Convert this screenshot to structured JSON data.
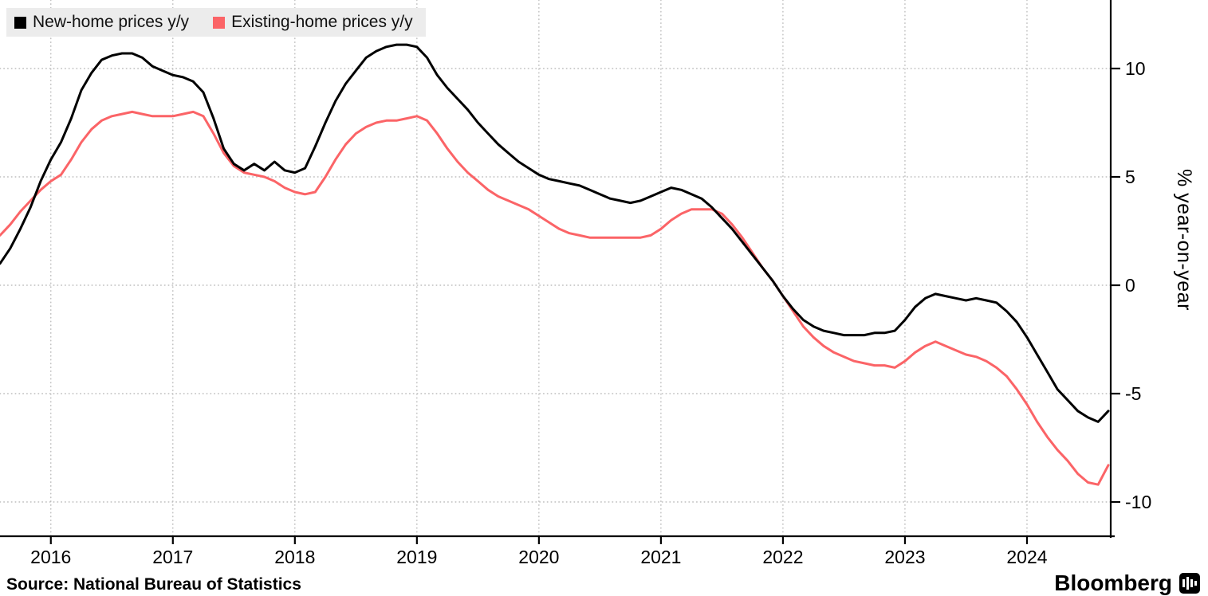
{
  "y_axis": {
    "title": "% year-on-year"
  },
  "footer": {
    "source": "Source: National Bureau of Statistics",
    "brand": "Bloomberg"
  },
  "chart_data": {
    "type": "line",
    "title": "",
    "ylabel": "% year-on-year",
    "xlabel": "",
    "grid": "dotted",
    "legend_position": "top-left",
    "axis_side": "right",
    "ylim": [
      -11.6,
      13.2
    ],
    "y_ticks": [
      10,
      5,
      0,
      -5,
      -10
    ],
    "x_tick_labels": [
      "2016",
      "2017",
      "2018",
      "2019",
      "2020",
      "2021",
      "2022",
      "2023",
      "2024"
    ],
    "x": [
      "2015-08",
      "2015-09",
      "2015-10",
      "2015-11",
      "2015-12",
      "2016-01",
      "2016-02",
      "2016-03",
      "2016-04",
      "2016-05",
      "2016-06",
      "2016-07",
      "2016-08",
      "2016-09",
      "2016-10",
      "2016-11",
      "2016-12",
      "2017-01",
      "2017-02",
      "2017-03",
      "2017-04",
      "2017-05",
      "2017-06",
      "2017-07",
      "2017-08",
      "2017-09",
      "2017-10",
      "2017-11",
      "2017-12",
      "2018-01",
      "2018-02",
      "2018-03",
      "2018-04",
      "2018-05",
      "2018-06",
      "2018-07",
      "2018-08",
      "2018-09",
      "2018-10",
      "2018-11",
      "2018-12",
      "2019-01",
      "2019-02",
      "2019-03",
      "2019-04",
      "2019-05",
      "2019-06",
      "2019-07",
      "2019-08",
      "2019-09",
      "2019-10",
      "2019-11",
      "2019-12",
      "2020-01",
      "2020-02",
      "2020-03",
      "2020-04",
      "2020-05",
      "2020-06",
      "2020-07",
      "2020-08",
      "2020-09",
      "2020-10",
      "2020-11",
      "2020-12",
      "2021-01",
      "2021-02",
      "2021-03",
      "2021-04",
      "2021-05",
      "2021-06",
      "2021-07",
      "2021-08",
      "2021-09",
      "2021-10",
      "2021-11",
      "2021-12",
      "2022-01",
      "2022-02",
      "2022-03",
      "2022-04",
      "2022-05",
      "2022-06",
      "2022-07",
      "2022-08",
      "2022-09",
      "2022-10",
      "2022-11",
      "2022-12",
      "2023-01",
      "2023-02",
      "2023-03",
      "2023-04",
      "2023-05",
      "2023-06",
      "2023-07",
      "2023-08",
      "2023-09",
      "2023-10",
      "2023-11",
      "2023-12",
      "2024-01",
      "2024-02",
      "2024-03",
      "2024-04",
      "2024-05",
      "2024-06",
      "2024-07",
      "2024-08",
      "2024-09"
    ],
    "series": [
      {
        "name": "New-home prices y/y",
        "color": "#000000",
        "values": [
          1.0,
          1.7,
          2.6,
          3.6,
          4.8,
          5.8,
          6.6,
          7.7,
          9.0,
          9.8,
          10.4,
          10.6,
          10.7,
          10.7,
          10.5,
          10.1,
          9.9,
          9.7,
          9.6,
          9.4,
          8.9,
          7.7,
          6.3,
          5.6,
          5.3,
          5.6,
          5.3,
          5.7,
          5.3,
          5.2,
          5.4,
          6.4,
          7.5,
          8.5,
          9.3,
          9.9,
          10.5,
          10.8,
          11.0,
          11.1,
          11.1,
          11.0,
          10.5,
          9.7,
          9.1,
          8.6,
          8.1,
          7.5,
          7.0,
          6.5,
          6.1,
          5.7,
          5.4,
          5.1,
          4.9,
          4.8,
          4.7,
          4.6,
          4.4,
          4.2,
          4.0,
          3.9,
          3.8,
          3.9,
          4.1,
          4.3,
          4.5,
          4.4,
          4.2,
          4.0,
          3.6,
          3.1,
          2.6,
          2.0,
          1.4,
          0.8,
          0.2,
          -0.5,
          -1.1,
          -1.6,
          -1.9,
          -2.1,
          -2.2,
          -2.3,
          -2.3,
          -2.3,
          -2.2,
          -2.2,
          -2.1,
          -1.6,
          -1.0,
          -0.6,
          -0.4,
          -0.5,
          -0.6,
          -0.7,
          -0.6,
          -0.7,
          -0.8,
          -1.2,
          -1.7,
          -2.4,
          -3.2,
          -4.0,
          -4.8,
          -5.3,
          -5.8,
          -6.1,
          -6.3,
          -5.8
        ]
      },
      {
        "name": "Existing-home prices y/y",
        "color": "#fb6467",
        "values": [
          2.3,
          2.8,
          3.4,
          3.9,
          4.4,
          4.8,
          5.1,
          5.8,
          6.6,
          7.2,
          7.6,
          7.8,
          7.9,
          8.0,
          7.9,
          7.8,
          7.8,
          7.8,
          7.9,
          8.0,
          7.8,
          7.0,
          6.1,
          5.5,
          5.2,
          5.1,
          5.0,
          4.8,
          4.5,
          4.3,
          4.2,
          4.3,
          5.0,
          5.8,
          6.5,
          7.0,
          7.3,
          7.5,
          7.6,
          7.6,
          7.7,
          7.8,
          7.6,
          7.0,
          6.3,
          5.7,
          5.2,
          4.8,
          4.4,
          4.1,
          3.9,
          3.7,
          3.5,
          3.2,
          2.9,
          2.6,
          2.4,
          2.3,
          2.2,
          2.2,
          2.2,
          2.2,
          2.2,
          2.2,
          2.3,
          2.6,
          3.0,
          3.3,
          3.5,
          3.5,
          3.5,
          3.3,
          2.8,
          2.2,
          1.5,
          0.8,
          0.2,
          -0.5,
          -1.2,
          -1.9,
          -2.4,
          -2.8,
          -3.1,
          -3.3,
          -3.5,
          -3.6,
          -3.7,
          -3.7,
          -3.8,
          -3.5,
          -3.1,
          -2.8,
          -2.6,
          -2.8,
          -3.0,
          -3.2,
          -3.3,
          -3.5,
          -3.8,
          -4.2,
          -4.8,
          -5.5,
          -6.3,
          -7.0,
          -7.6,
          -8.1,
          -8.7,
          -9.1,
          -9.2,
          -8.3
        ]
      }
    ]
  }
}
